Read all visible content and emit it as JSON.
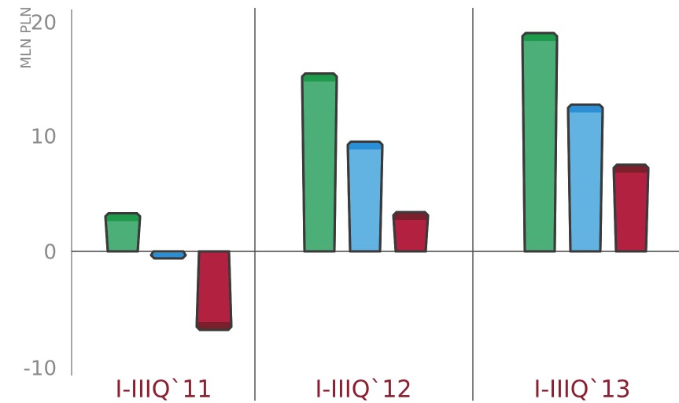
{
  "chart_data": {
    "type": "bar",
    "ylabel": "MLN PLN",
    "ylim": [
      -10,
      20
    ],
    "yticks": [
      "20",
      "10",
      "0",
      "-10"
    ],
    "categories": [
      "I-IIIQ`11",
      "I-IIIQ`12",
      "I-IIIQ`13"
    ],
    "series": [
      {
        "values": [
          3.3,
          15.4,
          18.9
        ]
      },
      {
        "values": [
          -0.6,
          9.5,
          12.7
        ]
      },
      {
        "values": [
          -6.8,
          3.4,
          7.5
        ]
      }
    ],
    "grid": false,
    "legend": "none"
  },
  "colors": {
    "series": [
      {
        "main": "#4caf78",
        "top": "#1f9a4a"
      },
      {
        "main": "#62b3e2",
        "top": "#2b8fd6"
      },
      {
        "main": "#b2213f",
        "top": "#7a1f2c"
      }
    ],
    "category_label": "#8b1f2f",
    "axis": "#8a8a8a",
    "outline": "#3a3a3a"
  }
}
